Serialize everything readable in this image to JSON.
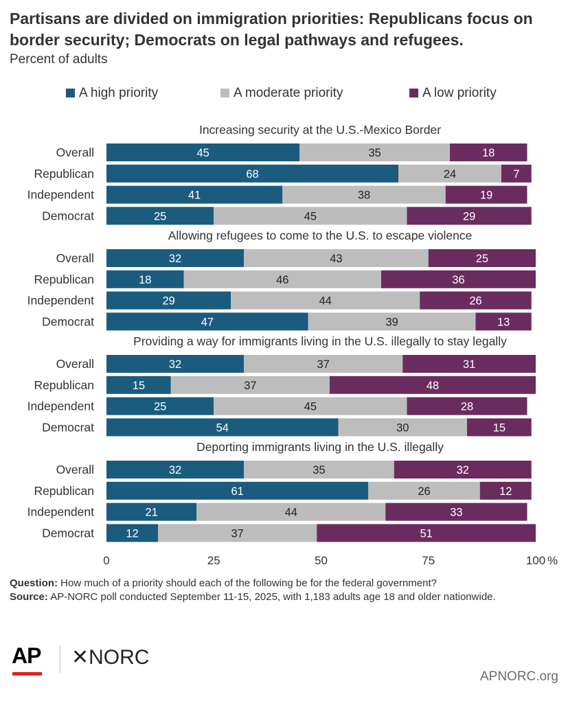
{
  "title": "Partisans are divided on immigration priorities: Republicans focus on border security; Democrats on legal pathways and refugees.",
  "subtitle": "Percent of adults",
  "footnote": {
    "question_label": "Question:",
    "question": "How much of a priority should each of the following be for the federal government?",
    "source_label": "Source:",
    "source": "AP-NORC poll conducted September 11-15, 2025, with 1,183 adults age 18 and older nationwide."
  },
  "logos": {
    "ap": "AP",
    "norc": "✕NORC",
    "site": "APNORC.org"
  },
  "colors": {
    "high": "#1b5b7e",
    "moderate": "#bdbdbd",
    "low": "#6a2c5f"
  },
  "chart_data": {
    "type": "bar",
    "orientation": "horizontal",
    "stacked": true,
    "legend": [
      "A high priority",
      "A moderate priority",
      "A low priority"
    ],
    "legend_position": "top",
    "xlim": [
      0,
      100
    ],
    "xticks": [
      "0",
      "25",
      "50",
      "75",
      "100"
    ],
    "x_unit": "%",
    "grid": false,
    "groups": [
      {
        "title": "Increasing security at the U.S.-Mexico Border",
        "rows": [
          {
            "label": "Overall",
            "values": [
              45,
              35,
              18
            ]
          },
          {
            "label": "Republican",
            "values": [
              68,
              24,
              7
            ]
          },
          {
            "label": "Independent",
            "values": [
              41,
              38,
              19
            ]
          },
          {
            "label": "Democrat",
            "values": [
              25,
              45,
              29
            ]
          }
        ]
      },
      {
        "title": "Allowing refugees to come to the U.S. to escape violence",
        "rows": [
          {
            "label": "Overall",
            "values": [
              32,
              43,
              25
            ]
          },
          {
            "label": "Republican",
            "values": [
              18,
              46,
              36
            ]
          },
          {
            "label": "Independent",
            "values": [
              29,
              44,
              26
            ]
          },
          {
            "label": "Democrat",
            "values": [
              47,
              39,
              13
            ]
          }
        ]
      },
      {
        "title": "Providing a way for immigrants living in the U.S. illegally to stay legally",
        "rows": [
          {
            "label": "Overall",
            "values": [
              32,
              37,
              31
            ]
          },
          {
            "label": "Republican",
            "values": [
              15,
              37,
              48
            ]
          },
          {
            "label": "Independent",
            "values": [
              25,
              45,
              28
            ]
          },
          {
            "label": "Democrat",
            "values": [
              54,
              30,
              15
            ]
          }
        ]
      },
      {
        "title": "Deporting immigrants living in the U.S. illegally",
        "rows": [
          {
            "label": "Overall",
            "values": [
              32,
              35,
              32
            ]
          },
          {
            "label": "Republican",
            "values": [
              61,
              26,
              12
            ]
          },
          {
            "label": "Independent",
            "values": [
              21,
              44,
              33
            ]
          },
          {
            "label": "Democrat",
            "values": [
              12,
              37,
              51
            ]
          }
        ]
      }
    ]
  }
}
